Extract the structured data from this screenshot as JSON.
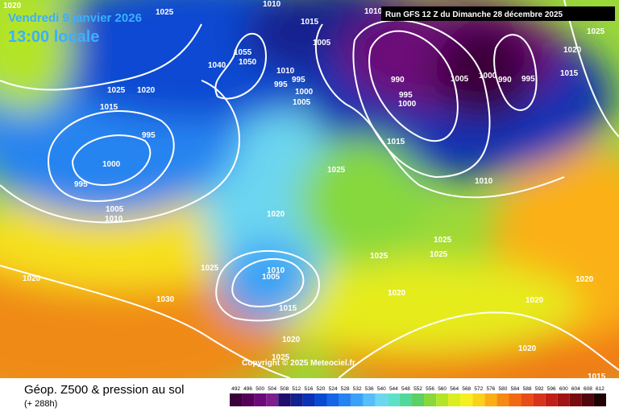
{
  "header": {
    "valid_date": "Vendredi 9 janvier 2026",
    "valid_time": "13:00 locale",
    "run": "Run GFS 12 Z du Dimanche 28 décembre 2025"
  },
  "copyright": "Copyright © 2025 Meteociel.fr",
  "footer": {
    "title": "Géop. Z500 & pression au sol",
    "lead": "(+ 288h)"
  },
  "isobar_labels": [
    1020,
    1025,
    1010,
    1015,
    1005,
    1055,
    1050,
    1040,
    1010,
    995,
    995,
    1000,
    1005,
    1025,
    1020,
    1015,
    995,
    1000,
    995,
    1005,
    1010,
    1015,
    1025,
    1020,
    1025,
    1010,
    1005,
    1020,
    1030,
    1015,
    1020,
    1025,
    1025,
    1025,
    1025,
    1020,
    1020,
    1020,
    1020,
    1015,
    1005,
    1000,
    990,
    995,
    990,
    995,
    1000,
    1010,
    1020,
    1025,
    1015,
    1010
  ],
  "scale": {
    "labels": [
      492,
      496,
      500,
      504,
      508,
      512,
      516,
      520,
      524,
      528,
      532,
      536,
      540,
      544,
      548,
      552,
      556,
      560,
      564,
      568,
      572,
      576,
      580,
      584,
      588,
      592,
      596,
      600,
      604,
      608,
      612
    ],
    "colors": [
      "#3a0038",
      "#55005a",
      "#6c0a78",
      "#7d1e90",
      "#1e0f6e",
      "#14208e",
      "#0a32b4",
      "#0a4ad2",
      "#1466e6",
      "#2684f0",
      "#3aa2f6",
      "#56bef8",
      "#6cd6f0",
      "#5ee0c8",
      "#52d89a",
      "#5cd064",
      "#86d83c",
      "#b4e428",
      "#dcee1e",
      "#f6f01e",
      "#fad21a",
      "#faae14",
      "#f68a12",
      "#f06a14",
      "#e84c18",
      "#d8341c",
      "#c02018",
      "#a01414",
      "#780c10",
      "#50060a",
      "#200204"
    ]
  }
}
